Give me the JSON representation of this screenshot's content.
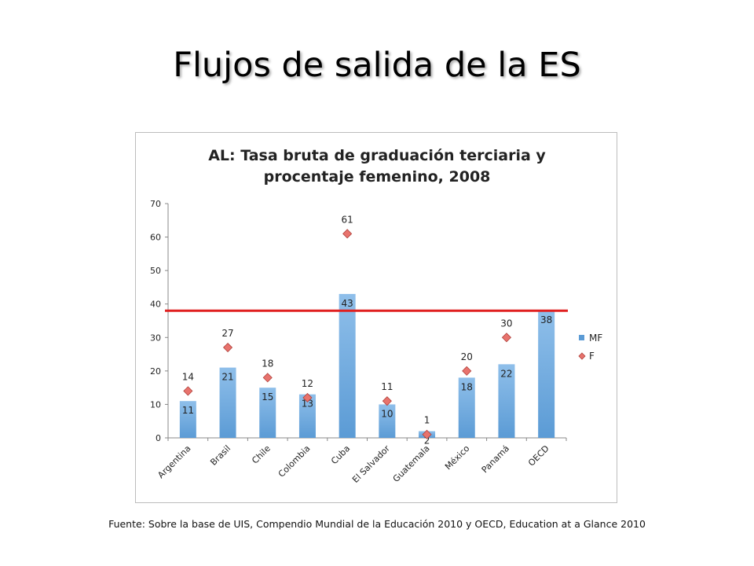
{
  "slide": {
    "title": "Flujos de salida de la ES",
    "footnote": "Fuente: Sobre la base de UIS, Compendio Mundial de la Educación 2010 y OECD, Education at a Glance 2010"
  },
  "colors": {
    "bar": "#5b9bd5",
    "bar_top": "#8fbfea",
    "marker": "#e8736d",
    "marker_stroke": "#b0403b",
    "reference_line": "#e02020"
  },
  "chart_data": {
    "type": "bar",
    "title_lines": [
      "AL: Tasa bruta de graduación terciaria y",
      "procentaje femenino, 2008"
    ],
    "categories": [
      "Argentina",
      "Brasil",
      "Chile",
      "Colombia",
      "Cuba",
      "El Salvador",
      "Guatemala",
      "México",
      "Panamá",
      "OECD"
    ],
    "series": [
      {
        "name": "MF",
        "kind": "bar",
        "values": [
          11,
          21,
          15,
          13,
          43,
          10,
          2,
          18,
          22,
          38
        ],
        "labels": [
          "11",
          "21",
          "15",
          "13",
          "43",
          "10",
          "2",
          "18",
          "22",
          "38"
        ]
      },
      {
        "name": "F",
        "kind": "marker",
        "values": [
          14,
          27,
          18,
          12,
          61,
          11,
          1,
          20,
          30,
          null
        ],
        "labels": [
          "14",
          "27",
          "18",
          "12",
          "61",
          "11",
          "1",
          "20",
          "30",
          ""
        ]
      }
    ],
    "reference_line": {
      "value": 38
    },
    "ylim": [
      0,
      70
    ],
    "yticks": [
      0,
      10,
      20,
      30,
      40,
      50,
      60,
      70
    ],
    "grid": false,
    "legend_position": "right"
  }
}
